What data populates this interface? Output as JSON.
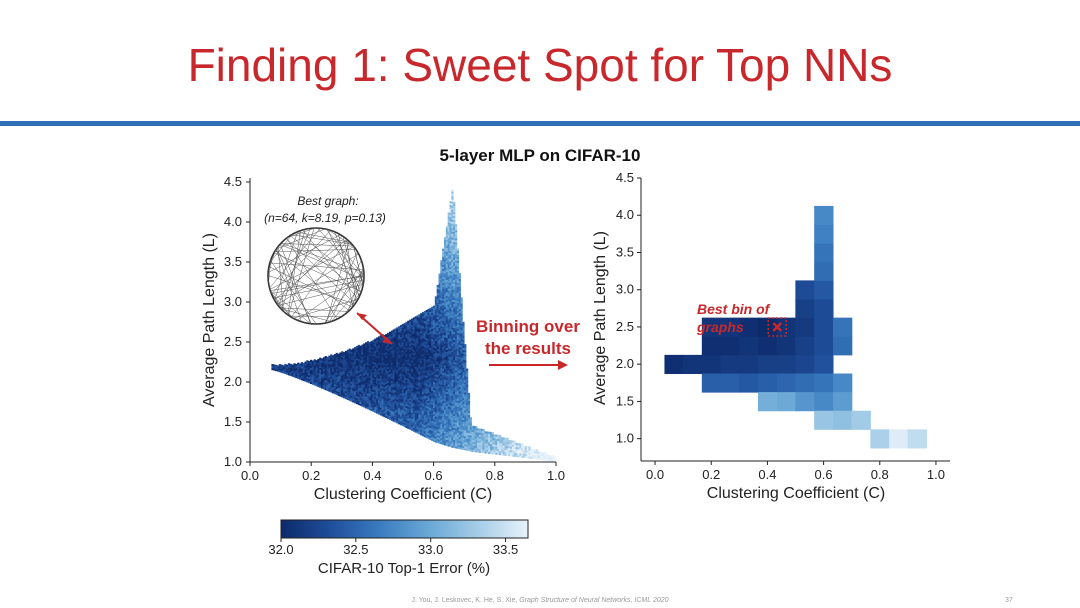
{
  "slide": {
    "title": "Finding 1: Sweet Spot for Top NNs",
    "accent_color": "#c8282c",
    "rule_color": "#2f6fb3",
    "page_number": "37",
    "citation_prefix": "J. You, J. Leskovec, K. He, S. Xie, ",
    "citation_italic": "Graph Structure of Neural Networks, ICML 2020"
  },
  "chart_data": [
    {
      "type": "scatter",
      "title": "5-layer MLP on CIFAR-10",
      "xlabel": "Clustering Coefficient (C)",
      "ylabel": "Average Path Length (L)",
      "xlim": [
        0.0,
        1.0
      ],
      "ylim": [
        1.0,
        4.5
      ],
      "xticks": [
        "0.0",
        "0.2",
        "0.4",
        "0.6",
        "0.8",
        "1.0"
      ],
      "yticks": [
        "1.0",
        "1.5",
        "2.0",
        "2.5",
        "3.0",
        "3.5",
        "4.0",
        "4.5"
      ],
      "annotation": {
        "label": "Best graph:",
        "params": "(n=64, k=8.19, p=0.13)",
        "point": [
          0.45,
          2.45
        ]
      }
    },
    {
      "type": "heatmap",
      "xlabel": "Clustering Coefficient (C)",
      "ylabel": "Average Path Length (L)",
      "xlim": [
        0.0,
        1.0
      ],
      "ylim": [
        0.7,
        4.5
      ],
      "xticks": [
        "0.0",
        "0.2",
        "0.4",
        "0.6",
        "0.8",
        "1.0"
      ],
      "yticks": [
        "1.0",
        "1.5",
        "2.0",
        "2.5",
        "3.0",
        "3.5",
        "4.0",
        "4.5"
      ],
      "bin_width_c": 0.067,
      "bin_height_l": 0.25,
      "best_bin_label": "Best bin of\ngraphs",
      "best_bin": [
        0.4,
        2.5
      ],
      "bins": [
        {
          "c": 0.067,
          "l": 2.0,
          "err": 32.05
        },
        {
          "c": 0.133,
          "l": 2.0,
          "err": 32.1
        },
        {
          "c": 0.2,
          "l": 2.0,
          "err": 32.1
        },
        {
          "c": 0.267,
          "l": 2.0,
          "err": 32.15
        },
        {
          "c": 0.333,
          "l": 2.0,
          "err": 32.15
        },
        {
          "c": 0.4,
          "l": 2.0,
          "err": 32.2
        },
        {
          "c": 0.467,
          "l": 2.0,
          "err": 32.2
        },
        {
          "c": 0.533,
          "l": 2.0,
          "err": 32.25
        },
        {
          "c": 0.6,
          "l": 2.0,
          "err": 32.35
        },
        {
          "c": 0.2,
          "l": 2.25,
          "err": 32.05
        },
        {
          "c": 0.267,
          "l": 2.25,
          "err": 32.05
        },
        {
          "c": 0.333,
          "l": 2.25,
          "err": 32.1
        },
        {
          "c": 0.4,
          "l": 2.25,
          "err": 32.05
        },
        {
          "c": 0.467,
          "l": 2.25,
          "err": 32.1
        },
        {
          "c": 0.533,
          "l": 2.25,
          "err": 32.2
        },
        {
          "c": 0.6,
          "l": 2.25,
          "err": 32.3
        },
        {
          "c": 0.667,
          "l": 2.25,
          "err": 32.55
        },
        {
          "c": 0.2,
          "l": 2.5,
          "err": 32.1
        },
        {
          "c": 0.267,
          "l": 2.5,
          "err": 32.1
        },
        {
          "c": 0.333,
          "l": 2.5,
          "err": 32.05
        },
        {
          "c": 0.4,
          "l": 2.5,
          "err": 32.0
        },
        {
          "c": 0.467,
          "l": 2.5,
          "err": 32.1
        },
        {
          "c": 0.533,
          "l": 2.5,
          "err": 32.15
        },
        {
          "c": 0.6,
          "l": 2.5,
          "err": 32.3
        },
        {
          "c": 0.667,
          "l": 2.5,
          "err": 32.6
        },
        {
          "c": 0.533,
          "l": 2.75,
          "err": 32.2
        },
        {
          "c": 0.6,
          "l": 2.75,
          "err": 32.3
        },
        {
          "c": 0.533,
          "l": 3.0,
          "err": 32.3
        },
        {
          "c": 0.6,
          "l": 3.0,
          "err": 32.4
        },
        {
          "c": 0.6,
          "l": 3.25,
          "err": 32.55
        },
        {
          "c": 0.6,
          "l": 3.5,
          "err": 32.6
        },
        {
          "c": 0.6,
          "l": 3.75,
          "err": 32.7
        },
        {
          "c": 0.6,
          "l": 4.0,
          "err": 32.75
        },
        {
          "c": 0.2,
          "l": 1.75,
          "err": 32.45
        },
        {
          "c": 0.267,
          "l": 1.75,
          "err": 32.45
        },
        {
          "c": 0.333,
          "l": 1.75,
          "err": 32.4
        },
        {
          "c": 0.4,
          "l": 1.75,
          "err": 32.45
        },
        {
          "c": 0.467,
          "l": 1.75,
          "err": 32.5
        },
        {
          "c": 0.533,
          "l": 1.75,
          "err": 32.55
        },
        {
          "c": 0.6,
          "l": 1.75,
          "err": 32.6
        },
        {
          "c": 0.667,
          "l": 1.75,
          "err": 32.75
        },
        {
          "c": 0.4,
          "l": 1.5,
          "err": 33.05
        },
        {
          "c": 0.467,
          "l": 1.5,
          "err": 33.0
        },
        {
          "c": 0.533,
          "l": 1.5,
          "err": 32.85
        },
        {
          "c": 0.6,
          "l": 1.5,
          "err": 32.75
        },
        {
          "c": 0.667,
          "l": 1.5,
          "err": 32.9
        },
        {
          "c": 0.6,
          "l": 1.25,
          "err": 33.25
        },
        {
          "c": 0.667,
          "l": 1.25,
          "err": 33.2
        },
        {
          "c": 0.733,
          "l": 1.25,
          "err": 33.3
        },
        {
          "c": 0.8,
          "l": 1.0,
          "err": 33.35
        },
        {
          "c": 0.867,
          "l": 1.0,
          "err": 33.6
        },
        {
          "c": 0.933,
          "l": 1.0,
          "err": 33.45
        }
      ]
    }
  ],
  "binning_label": "Binning over\nthe results",
  "colorbar": {
    "label": "CIFAR-10 Top-1 Error (%)",
    "min": 32.0,
    "max": 33.65,
    "ticks": [
      "32.0",
      "32.5",
      "33.0",
      "33.5"
    ],
    "colors": [
      "#0d2a6b",
      "#1f4e9a",
      "#3a7cc0",
      "#6aa8d6",
      "#a6cde8",
      "#e8f2fa"
    ]
  }
}
